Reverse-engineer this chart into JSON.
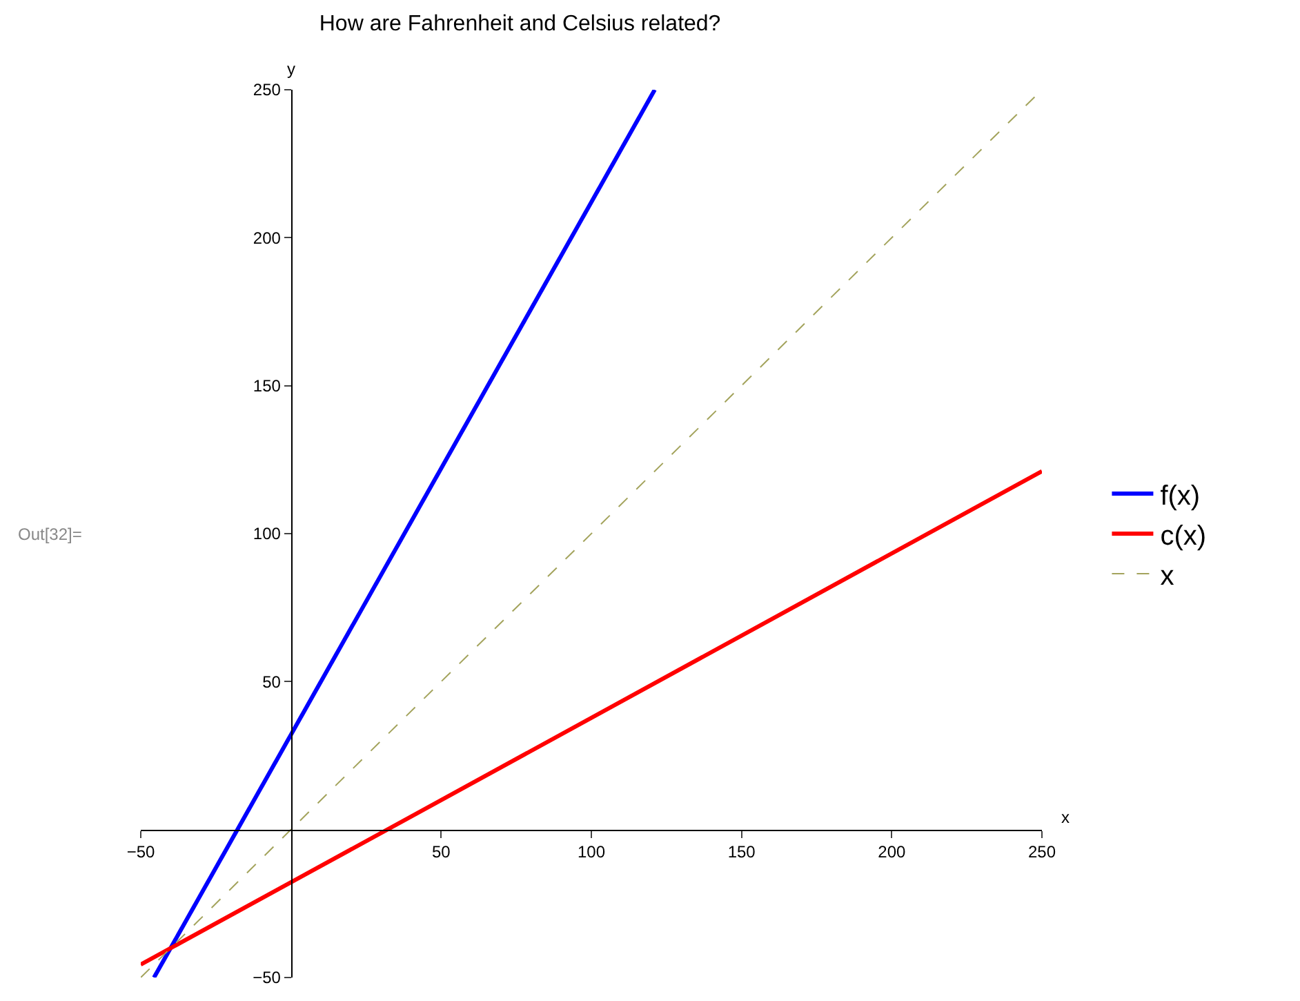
{
  "chart_data": {
    "type": "line",
    "title": "How are Fahrenheit and Celsius related?",
    "xlabel": "x",
    "ylabel": "y",
    "annotations": [
      "Out[32]="
    ],
    "series": [
      {
        "name": "f(x)",
        "color": "#0000ff",
        "x": [
          -45.6,
          121.1
        ],
        "values": [
          -50,
          250
        ]
      },
      {
        "name": "c(x)",
        "color": "#ff0000",
        "x": [
          -50,
          250
        ],
        "values": [
          -45.6,
          121.1
        ]
      },
      {
        "name": "x",
        "color": "#a3a35c",
        "x": [
          -50,
          250
        ],
        "values": [
          -50,
          250
        ],
        "line_style": "dashed"
      }
    ],
    "xlim": [
      -50,
      250
    ],
    "ylim": [
      -50,
      250
    ],
    "xticks": [
      -50,
      50,
      100,
      150,
      200,
      250
    ],
    "yticks": [
      -50,
      50,
      100,
      150,
      200,
      250
    ],
    "legend": "right",
    "marker": "none",
    "line_style": "solid"
  }
}
